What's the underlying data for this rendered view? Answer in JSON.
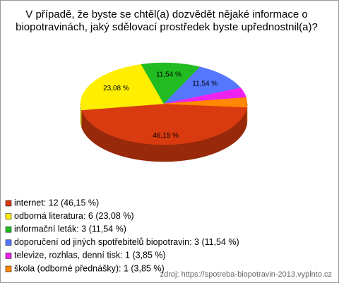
{
  "chart_data": {
    "type": "pie",
    "title": "V případě, že byste se chtěl(a) dozvědět nějaké informace o",
    "subtitle": "biopotravinách, jaký sdělovací prostředek byste upřednostnil(a)?",
    "categories": [
      "internet: 12 (46,15 %)",
      "odborná literatura: 6 (23,08 %)",
      "informační leták: 3 (11,54 %)",
      "doporučení od jiných spotřebitelů biopotravin: 3 (11,54 %)",
      "televize, rozhlas, denní tisk: 1 (3,85 %)",
      "škola (odborné přednášky): 1 (3,85 %)"
    ],
    "values": [
      46.15,
      23.08,
      11.54,
      11.54,
      3.85,
      3.85
    ],
    "value_labels": [
      "46,15 %",
      "23,08 %",
      "11,54 %",
      "11,54 %",
      null,
      null
    ],
    "colors": [
      "#d93a10",
      "#ffee00",
      "#22bb22",
      "#5577ff",
      "#ee22ee",
      "#ff8800"
    ],
    "source": "zdroj: https://spotreba-biopotravin-2013.vyplnto.cz"
  }
}
